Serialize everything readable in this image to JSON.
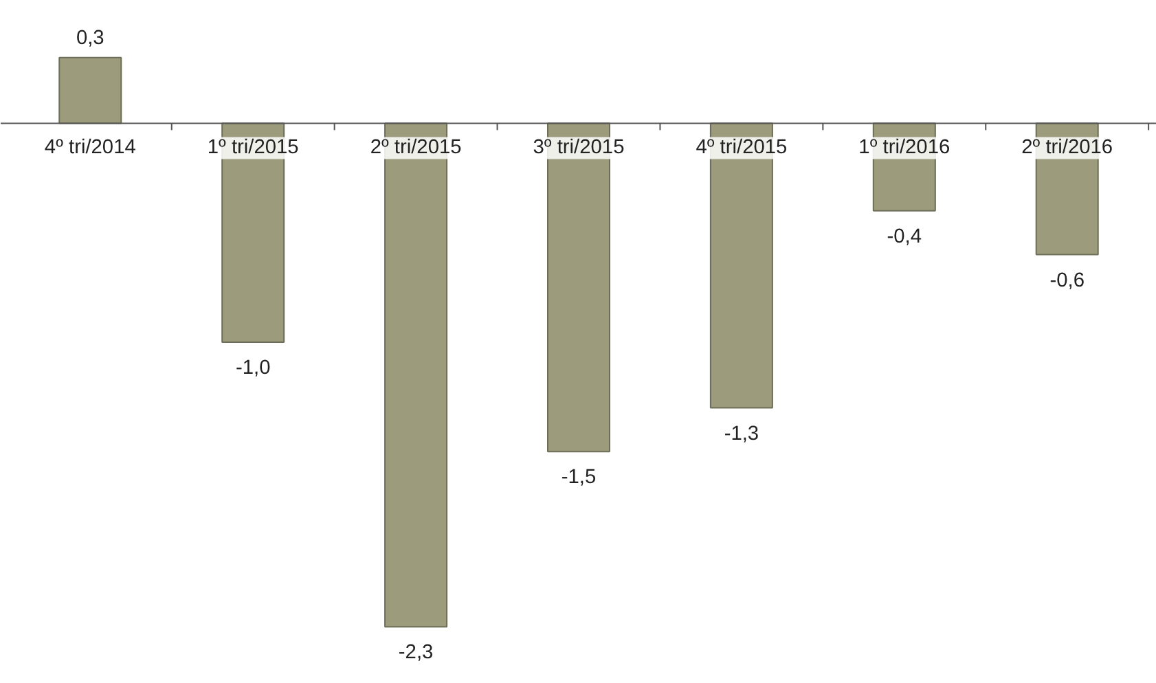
{
  "chart_data": {
    "type": "bar",
    "categories": [
      "4º tri/2014",
      "1º tri/2015",
      "2º tri/2015",
      "3º tri/2015",
      "4º tri/2015",
      "1º tri/2016",
      "2º tri/2016"
    ],
    "values": [
      0.3,
      -1.0,
      -2.3,
      -1.5,
      -1.3,
      -0.4,
      -0.6
    ],
    "value_labels": [
      "0,3",
      "-1,0",
      "-2,3",
      "-1,5",
      "-1,3",
      "-0,4",
      "-0,6"
    ],
    "color": "#9c9c7c"
  }
}
